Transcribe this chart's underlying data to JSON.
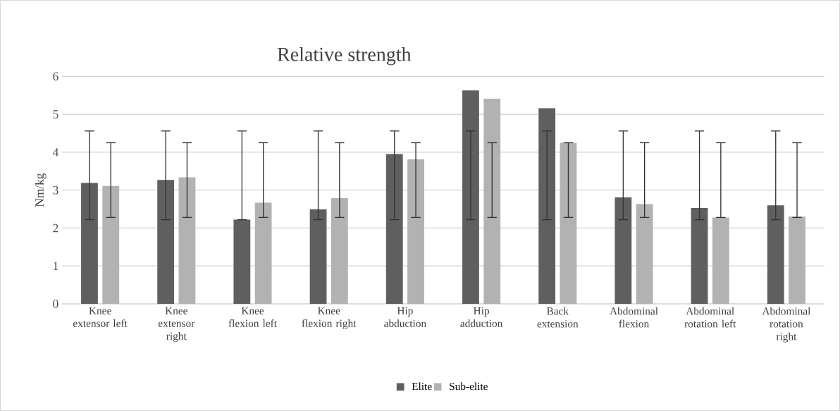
{
  "chart_data": {
    "type": "bar",
    "title": "Relative strength",
    "ylabel": "Nm/kg",
    "categories": [
      "Knee extensor left",
      "Knee extensor right",
      "Knee flexion left",
      "Knee flexion right",
      "Hip abduction",
      "Hip adduction",
      "Back extension",
      "Abdominal flexion",
      "Abdominal rotation left",
      "Abdominal rotation right"
    ],
    "series": [
      {
        "name": "Elite",
        "color": "#5f5f5f",
        "values": [
          3.19,
          3.27,
          2.22,
          2.49,
          3.95,
          5.63,
          5.16,
          2.81,
          2.53,
          2.6
        ],
        "errors": [
          [
            2.22,
            4.56
          ],
          [
            2.22,
            4.56
          ],
          [
            2.22,
            4.56
          ],
          [
            2.22,
            4.56
          ],
          [
            2.22,
            4.56
          ],
          [
            2.22,
            4.56
          ],
          [
            2.22,
            4.56
          ],
          [
            2.22,
            4.56
          ],
          [
            2.22,
            4.56
          ],
          [
            2.22,
            4.56
          ]
        ]
      },
      {
        "name": "Sub-elite",
        "color": "#b2b2b2",
        "values": [
          3.11,
          3.34,
          2.67,
          2.79,
          3.81,
          5.41,
          4.25,
          2.63,
          2.28,
          2.3
        ],
        "errors": [
          [
            2.28,
            4.25
          ],
          [
            2.28,
            4.25
          ],
          [
            2.28,
            4.25
          ],
          [
            2.28,
            4.25
          ],
          [
            2.28,
            4.25
          ],
          [
            2.28,
            4.25
          ],
          [
            2.28,
            4.25
          ],
          [
            2.28,
            4.25
          ],
          [
            2.28,
            4.25
          ],
          [
            2.28,
            4.25
          ]
        ]
      }
    ],
    "ylim": [
      0,
      6
    ],
    "yticks": [
      0,
      1,
      2,
      3,
      4,
      5,
      6
    ],
    "grid": "y",
    "legend": "bottom"
  }
}
